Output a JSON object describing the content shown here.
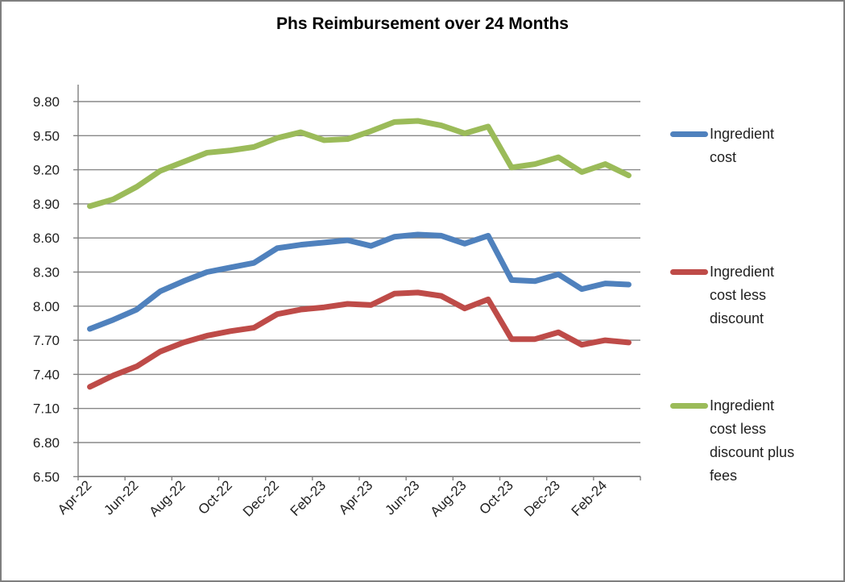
{
  "chart_data": {
    "type": "line",
    "title": "Phs Reimbursement over 24 Months",
    "x": [
      "Apr-22",
      "May-22",
      "Jun-22",
      "Jul-22",
      "Aug-22",
      "Sep-22",
      "Oct-22",
      "Nov-22",
      "Dec-22",
      "Jan-23",
      "Feb-23",
      "Mar-23",
      "Apr-23",
      "May-23",
      "Jun-23",
      "Jul-23",
      "Aug-23",
      "Sep-23",
      "Oct-23",
      "Nov-23",
      "Dec-23",
      "Jan-24",
      "Feb-24",
      "Mar-24"
    ],
    "x_tick_labels": [
      "Apr-22",
      "Jun-22",
      "Aug-22",
      "Oct-22",
      "Dec-22",
      "Feb-23",
      "Apr-23",
      "Jun-23",
      "Aug-23",
      "Oct-23",
      "Dec-23",
      "Feb-24"
    ],
    "series": [
      {
        "name": "Ingredient cost",
        "color": "#4F81BD",
        "values": [
          7.8,
          7.88,
          7.97,
          8.13,
          8.22,
          8.3,
          8.34,
          8.38,
          8.51,
          8.54,
          8.56,
          8.58,
          8.53,
          8.61,
          8.63,
          8.62,
          8.55,
          8.62,
          8.23,
          8.22,
          8.28,
          8.15,
          8.2,
          8.19
        ]
      },
      {
        "name": "Ingredient cost less discount",
        "color": "#BE4B48",
        "values": [
          7.29,
          7.39,
          7.47,
          7.6,
          7.68,
          7.74,
          7.78,
          7.81,
          7.93,
          7.97,
          7.99,
          8.02,
          8.01,
          8.11,
          8.12,
          8.09,
          7.98,
          8.06,
          7.71,
          7.71,
          7.77,
          7.66,
          7.7,
          7.68
        ]
      },
      {
        "name": "Ingredient cost less discount plus fees",
        "color": "#9BBB59",
        "values": [
          8.88,
          8.94,
          9.05,
          9.19,
          9.27,
          9.35,
          9.37,
          9.4,
          9.48,
          9.53,
          9.46,
          9.47,
          9.54,
          9.62,
          9.63,
          9.59,
          9.52,
          9.58,
          9.22,
          9.25,
          9.31,
          9.18,
          9.25,
          9.15
        ]
      }
    ],
    "yticks": [
      6.5,
      6.8,
      7.1,
      7.4,
      7.7,
      8.0,
      8.3,
      8.6,
      8.9,
      9.2,
      9.5,
      9.8
    ],
    "ylim": [
      6.5,
      9.95
    ],
    "grid": true,
    "legend_position": "right"
  },
  "legend": {
    "items": [
      {
        "label": "Ingredient cost",
        "label_lines": [
          "Ingredient",
          "cost"
        ],
        "color": "#4F81BD"
      },
      {
        "label": "Ingredient cost less discount",
        "label_lines": [
          "Ingredient",
          "cost less",
          "discount"
        ],
        "color": "#BE4B48"
      },
      {
        "label": "Ingredient cost less discount plus fees",
        "label_lines": [
          "Ingredient",
          "cost less",
          "discount plus",
          "fees"
        ],
        "color": "#9BBB59"
      }
    ]
  },
  "style": {
    "background": "#ffffff",
    "frame_border_color": "#7f7f7f",
    "gridline_color": "#888888",
    "axis_color": "#7f7f7f",
    "text_color": "#1f1f1f",
    "title_color": "#000000"
  }
}
